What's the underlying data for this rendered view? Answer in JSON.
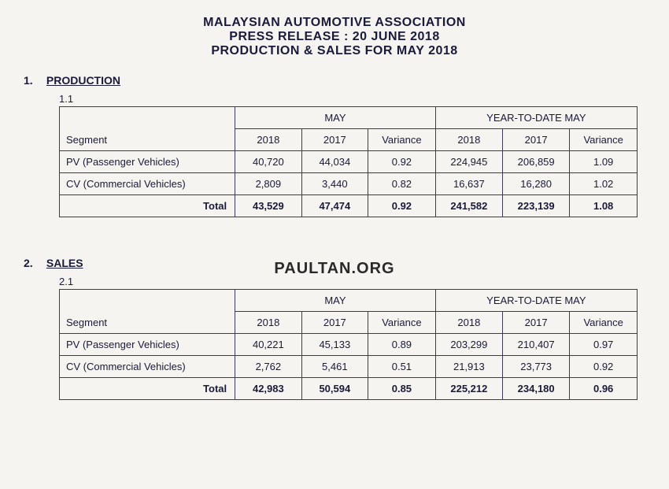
{
  "header": {
    "line1": "MALAYSIAN AUTOMOTIVE ASSOCIATION",
    "line2": "PRESS RELEASE :   20 JUNE 2018",
    "line3": "PRODUCTION & SALES FOR MAY 2018"
  },
  "watermark": "PAULTAN.ORG",
  "sections": {
    "production": {
      "num": "1.",
      "title": "PRODUCTION",
      "subsection": "1.1"
    },
    "sales": {
      "num": "2.",
      "title": "SALES",
      "subsection": "2.1"
    }
  },
  "table": {
    "segment_label": "Segment",
    "period1": "MAY",
    "period2": "YEAR-TO-DATE MAY",
    "cols": {
      "y2018": "2018",
      "y2017": "2017",
      "variance": "Variance"
    },
    "total_label": "Total",
    "colors": {
      "border": "#3a3a5a",
      "text": "#1a1a3a",
      "background": "#f5f4f0"
    },
    "font_size": 13
  },
  "production_data": {
    "rows": [
      {
        "segment": "PV (Passenger Vehicles)",
        "may_2018": "40,720",
        "may_2017": "44,034",
        "may_var": "0.92",
        "ytd_2018": "224,945",
        "ytd_2017": "206,859",
        "ytd_var": "1.09"
      },
      {
        "segment": "CV (Commercial Vehicles)",
        "may_2018": "2,809",
        "may_2017": "3,440",
        "may_var": "0.82",
        "ytd_2018": "16,637",
        "ytd_2017": "16,280",
        "ytd_var": "1.02"
      }
    ],
    "total": {
      "may_2018": "43,529",
      "may_2017": "47,474",
      "may_var": "0.92",
      "ytd_2018": "241,582",
      "ytd_2017": "223,139",
      "ytd_var": "1.08"
    }
  },
  "sales_data": {
    "rows": [
      {
        "segment": "PV (Passenger Vehicles)",
        "may_2018": "40,221",
        "may_2017": "45,133",
        "may_var": "0.89",
        "ytd_2018": "203,299",
        "ytd_2017": "210,407",
        "ytd_var": "0.97"
      },
      {
        "segment": "CV (Commercial Vehicles)",
        "may_2018": "2,762",
        "may_2017": "5,461",
        "may_var": "0.51",
        "ytd_2018": "21,913",
        "ytd_2017": "23,773",
        "ytd_var": "0.92"
      }
    ],
    "total": {
      "may_2018": "42,983",
      "may_2017": "50,594",
      "may_var": "0.85",
      "ytd_2018": "225,212",
      "ytd_2017": "234,180",
      "ytd_var": "0.96"
    }
  }
}
